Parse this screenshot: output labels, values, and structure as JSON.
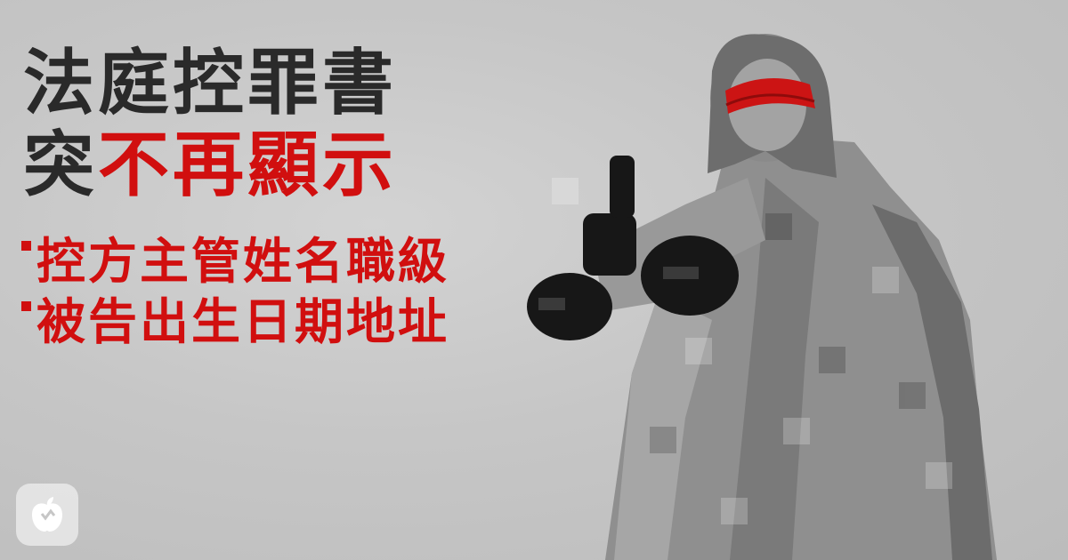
{
  "headline": {
    "line1": "法庭控罪書",
    "line2_prefix": "突",
    "line2_emphasis": "不再顯示"
  },
  "bullets": [
    "控方主管姓名職級",
    "被告出生日期地址"
  ],
  "colors": {
    "accent_red": "#d10f0f",
    "headline_dark": "#2a2a2a",
    "background_gray": "#c6c6c6"
  },
  "icons": {
    "logo": "apple-icon"
  }
}
